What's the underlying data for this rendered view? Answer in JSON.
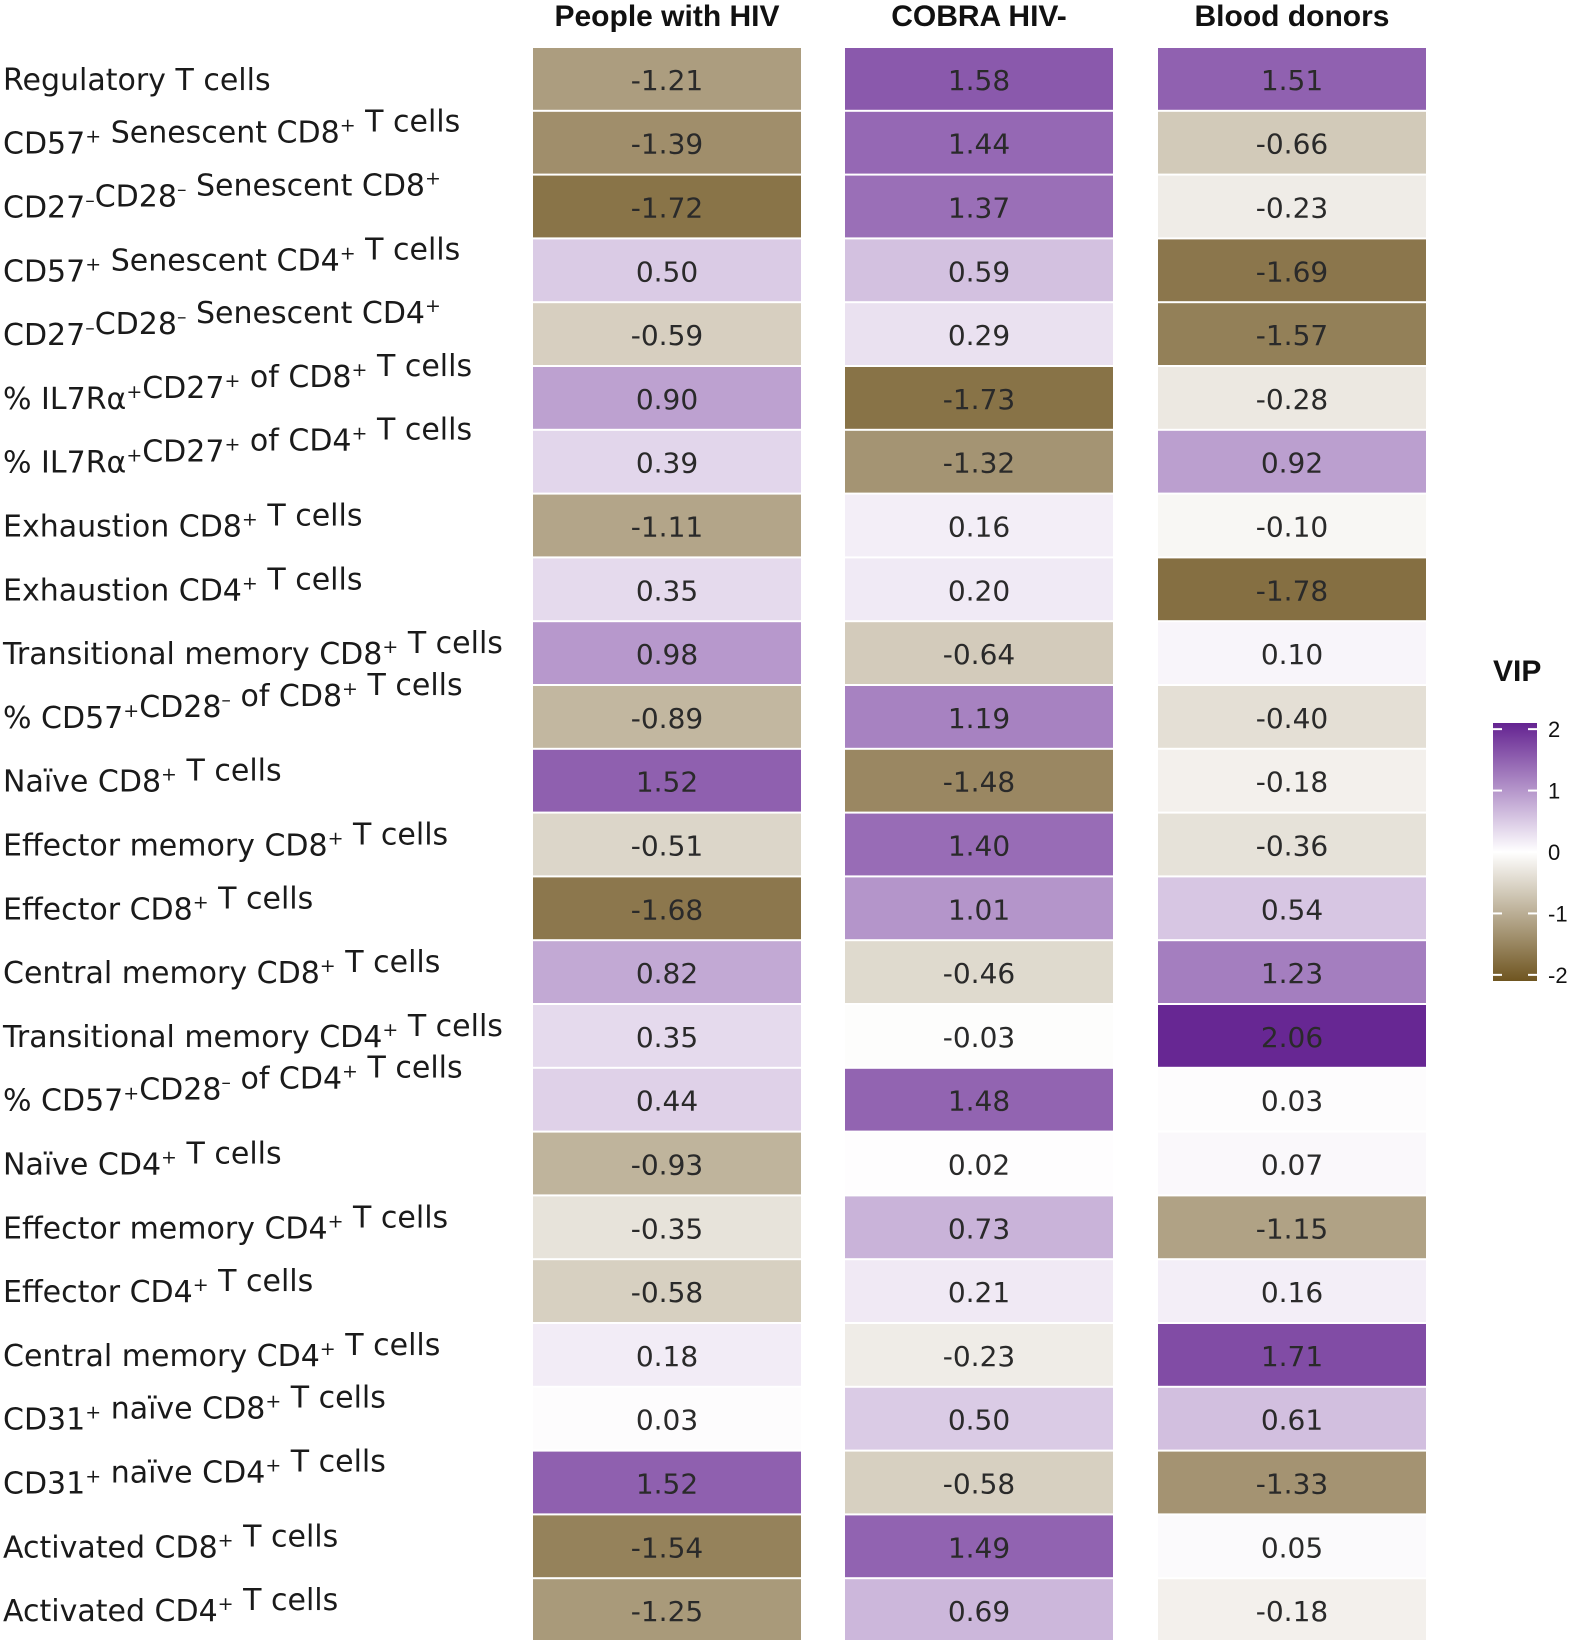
{
  "chart_data": {
    "type": "heatmap",
    "title": "",
    "columns": [
      "People with HIV",
      "COBRA HIV-",
      "Blood donors"
    ],
    "rows": [
      {
        "label": "Regulatory T cells",
        "values": [
          "-1.21",
          "1.58",
          "1.51"
        ]
      },
      {
        "label": "CD57⁺ Senescent CD8⁺ T cells",
        "values": [
          "-1.39",
          "1.44",
          "-0.66"
        ]
      },
      {
        "label": "CD27⁻CD28⁻ Senescent CD8⁺",
        "values": [
          "-1.72",
          "1.37",
          "-0.23"
        ]
      },
      {
        "label": "CD57⁺ Senescent CD4⁺ T cells",
        "values": [
          "0.50",
          "0.59",
          "-1.69"
        ]
      },
      {
        "label": "CD27⁻CD28⁻ Senescent CD4⁺",
        "values": [
          "-0.59",
          "0.29",
          "-1.57"
        ]
      },
      {
        "label": "% IL7Rα⁺CD27⁺ of CD8⁺ T cells",
        "values": [
          "0.90",
          "-1.73",
          "-0.28"
        ]
      },
      {
        "label": "% IL7Rα⁺CD27⁺ of CD4⁺ T cells",
        "values": [
          "0.39",
          "-1.32",
          "0.92"
        ]
      },
      {
        "label": "Exhaustion CD8⁺ T cells",
        "values": [
          "-1.11",
          "0.16",
          "-0.10"
        ]
      },
      {
        "label": "Exhaustion CD4⁺ T cells",
        "values": [
          "0.35",
          "0.20",
          "-1.78"
        ]
      },
      {
        "label": "Transitional memory CD8⁺ T cells",
        "values": [
          "0.98",
          "-0.64",
          "0.10"
        ]
      },
      {
        "label": "% CD57⁺CD28⁻ of CD8⁺ T cells",
        "values": [
          "-0.89",
          "1.19",
          "-0.40"
        ]
      },
      {
        "label": "Naïve CD8⁺ T cells",
        "values": [
          "1.52",
          "-1.48",
          "-0.18"
        ]
      },
      {
        "label": "Effector memory CD8⁺ T cells",
        "values": [
          "-0.51",
          "1.40",
          "-0.36"
        ]
      },
      {
        "label": "Effector CD8⁺ T cells",
        "values": [
          "-1.68",
          "1.01",
          "0.54"
        ]
      },
      {
        "label": "Central memory CD8⁺ T cells",
        "values": [
          "0.82",
          "-0.46",
          "1.23"
        ]
      },
      {
        "label": "Transitional memory CD4⁺ T cells",
        "values": [
          "0.35",
          "-0.03",
          "2.06"
        ]
      },
      {
        "label": "% CD57⁺CD28⁻ of CD4⁺ T cells",
        "values": [
          "0.44",
          "1.48",
          "0.03"
        ]
      },
      {
        "label": "Naïve CD4⁺ T cells",
        "values": [
          "-0.93",
          "0.02",
          "0.07"
        ]
      },
      {
        "label": "Effector memory CD4⁺ T cells",
        "values": [
          "-0.35",
          "0.73",
          "-1.15"
        ]
      },
      {
        "label": "Effector CD4⁺ T cells",
        "values": [
          "-0.58",
          "0.21",
          "0.16"
        ]
      },
      {
        "label": "Central memory CD4⁺ T cells",
        "values": [
          "0.18",
          "-0.23",
          "1.71"
        ]
      },
      {
        "label": "CD31⁺ naïve CD8⁺ T cells",
        "values": [
          "0.03",
          "0.50",
          "0.61"
        ]
      },
      {
        "label": "CD31⁺ naïve CD4⁺ T cells",
        "values": [
          "1.52",
          "-0.58",
          "-1.33"
        ]
      },
      {
        "label": "Activated CD8⁺ T cells",
        "values": [
          "-1.54",
          "1.49",
          "0.05"
        ]
      },
      {
        "label": "Activated CD4⁺ T cells",
        "values": [
          "-1.25",
          "0.69",
          "-0.18"
        ]
      }
    ],
    "legend": {
      "title": "VIP",
      "ticks": [
        "2",
        "1",
        "0",
        "-1",
        "-2"
      ],
      "range": [
        -2.1,
        2.1
      ],
      "placement": "right"
    },
    "colors": {
      "high": "#642391",
      "mid": "#ffffff",
      "low": "#6f5520"
    }
  }
}
